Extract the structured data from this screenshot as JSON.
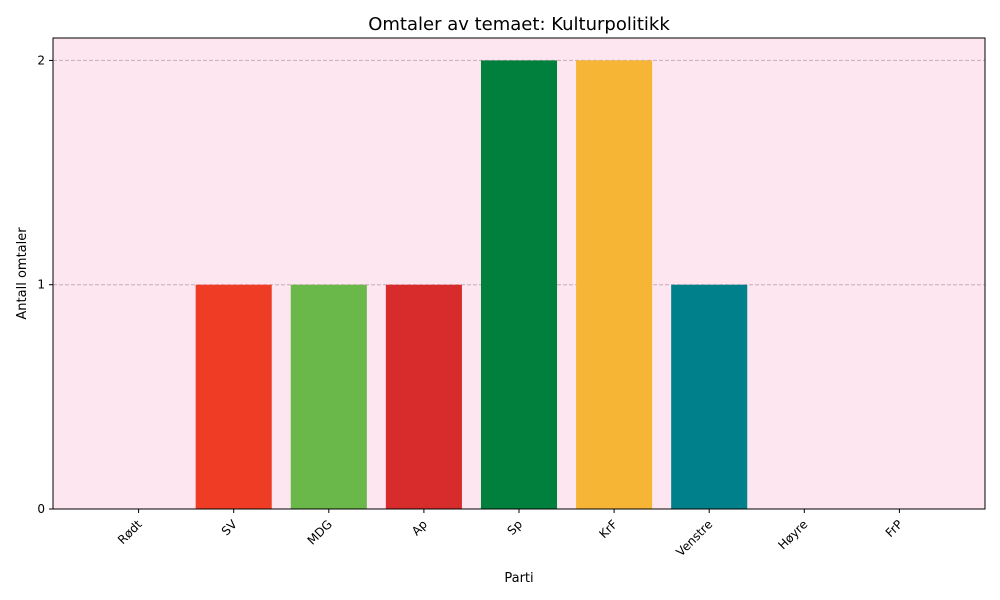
{
  "chart_data": {
    "type": "bar",
    "title": "Omtaler av temaet: Kulturpolitikk",
    "xlabel": "Parti",
    "ylabel": "Antall omtaler",
    "categories": [
      "Rødt",
      "SV",
      "MDG",
      "Ap",
      "Sp",
      "KrF",
      "Venstre",
      "Høyre",
      "FrP"
    ],
    "values": [
      0,
      1,
      1,
      1,
      2,
      2,
      1,
      0,
      0
    ],
    "colors": [
      "#a50021",
      "#ef3d25",
      "#6ab74a",
      "#d82b2b",
      "#00803c",
      "#f7b535",
      "#00808b",
      "#0065f1",
      "#004f8b"
    ],
    "ylim": [
      0,
      2.1
    ],
    "yticks": [
      0,
      1,
      2
    ],
    "ytick_labels": [
      "0",
      "1",
      "2"
    ],
    "grid": "y-dashed",
    "background": "#fee6f0",
    "grid_color": "#c8aab4"
  }
}
